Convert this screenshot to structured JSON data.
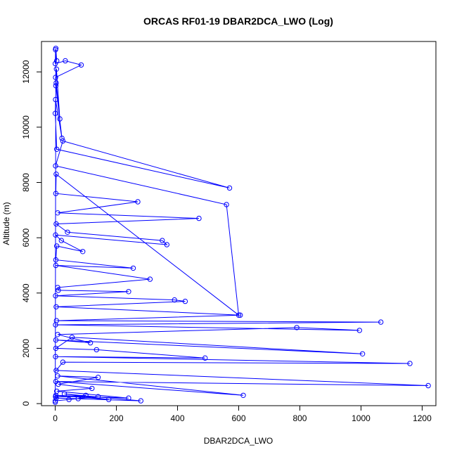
{
  "chart_data": {
    "type": "line",
    "title": "ORCAS RF01-19 DBAR2DCA_LWO (Log)",
    "xlabel": "DBAR2DCA_LWO",
    "ylabel": "Altitude (m)",
    "xlim": [
      -45,
      1245
    ],
    "ylim": [
      -75,
      13100
    ],
    "xticks": [
      0,
      200,
      400,
      600,
      800,
      1000,
      1200
    ],
    "yticks": [
      0,
      2000,
      4000,
      6000,
      8000,
      10000,
      12000
    ],
    "xtick_labels": [
      "0",
      "200",
      "400",
      "600",
      "800",
      "1000",
      "1200"
    ],
    "ytick_labels": [
      "0",
      "2000",
      "4000",
      "6000",
      "8000",
      "10000",
      "12000"
    ],
    "grid": false,
    "marker": "open-circle",
    "line_color": "#0000ff",
    "marker_color": "#0000ff",
    "x": [
      0,
      2,
      5,
      1,
      0,
      33,
      85,
      1,
      3,
      15,
      4,
      2,
      22,
      1,
      0,
      5,
      570,
      25,
      1,
      560,
      600,
      3,
      2,
      270,
      8,
      470,
      3,
      40,
      350,
      365,
      1,
      20,
      90,
      5,
      2,
      255,
      2,
      310,
      8,
      10,
      240,
      1,
      390,
      425,
      3,
      605,
      4,
      1065,
      1,
      995,
      790,
      8,
      115,
      2,
      1005,
      55,
      2,
      135,
      490,
      1,
      1160,
      25,
      3,
      1220,
      2,
      615,
      8,
      140,
      10,
      120,
      5,
      240,
      2,
      175,
      30,
      280,
      3,
      75,
      100,
      1,
      140,
      45,
      0
    ],
    "y": [
      50,
      12850,
      12400,
      12800,
      12300,
      12400,
      12250,
      11800,
      11600,
      10300,
      12100,
      11500,
      9600,
      11000,
      10500,
      9200,
      7800,
      9500,
      8600,
      7200,
      3200,
      8300,
      7600,
      7300,
      6900,
      6700,
      6500,
      6200,
      5900,
      5750,
      6100,
      5900,
      5500,
      5700,
      5200,
      4900,
      5000,
      4500,
      4200,
      4100,
      4050,
      3900,
      3750,
      3700,
      3500,
      3200,
      3000,
      2950,
      2850,
      2650,
      2750,
      2500,
      2200,
      2300,
      1800,
      2400,
      2000,
      1950,
      1650,
      1700,
      1450,
      1500,
      1200,
      650,
      800,
      300,
      1000,
      950,
      700,
      550,
      450,
      200,
      300,
      150,
      350,
      100,
      200,
      180,
      300,
      250,
      250,
      150,
      100
    ]
  }
}
